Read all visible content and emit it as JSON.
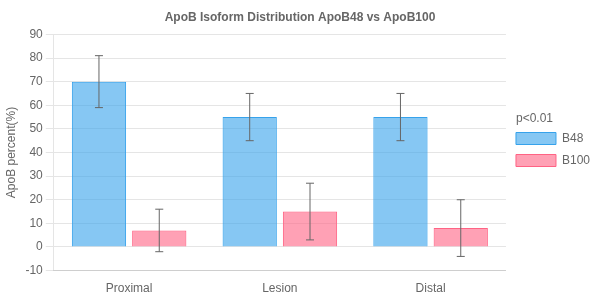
{
  "chart_data": {
    "type": "bar",
    "title": "ApoB Isoform Distribution ApoB48 vs ApoB100",
    "ylabel": "ApoB percent(%)",
    "categories": [
      "Proximal",
      "Lesion",
      "Distal"
    ],
    "series": [
      {
        "name": "B48",
        "values": [
          70,
          55,
          55
        ],
        "errors": [
          11,
          10,
          10
        ]
      },
      {
        "name": "B100",
        "values": [
          7,
          15,
          8
        ],
        "errors": [
          9,
          12,
          12
        ]
      }
    ],
    "ylim": [
      -10,
      90
    ],
    "yticks": [
      -10,
      0,
      10,
      20,
      30,
      40,
      50,
      60,
      70,
      80,
      90
    ],
    "grid": true,
    "legend": "right",
    "annotations": [
      "p<0.01"
    ]
  }
}
